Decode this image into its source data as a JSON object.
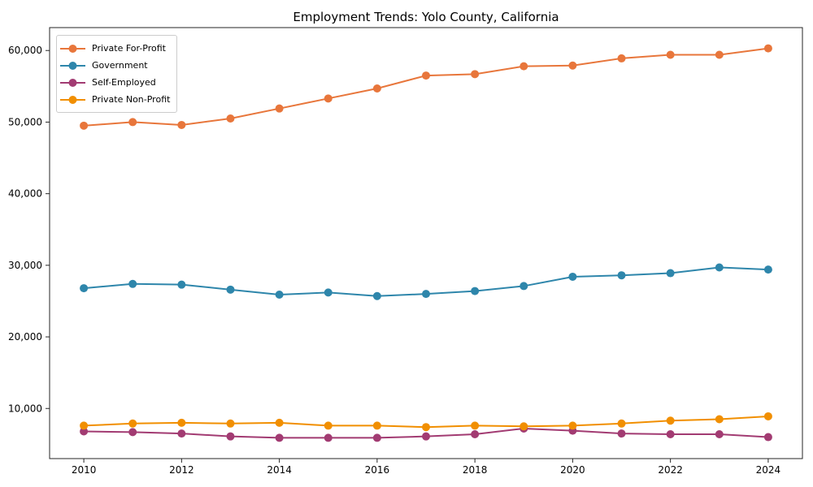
{
  "chart_data": {
    "type": "line",
    "title": "Employment Trends: Yolo County, California",
    "xlabel": "",
    "ylabel": "",
    "grid": false,
    "legend_position": "upper-left",
    "x": [
      2010,
      2011,
      2012,
      2013,
      2014,
      2015,
      2016,
      2017,
      2018,
      2019,
      2020,
      2021,
      2022,
      2023,
      2024
    ],
    "x_tick_labels": [
      "2010",
      "2012",
      "2014",
      "2016",
      "2018",
      "2020",
      "2022",
      "2024"
    ],
    "y_ticks": [
      10000,
      20000,
      30000,
      40000,
      50000,
      60000
    ],
    "y_tick_labels": [
      "10,000",
      "20,000",
      "30,000",
      "40,000",
      "50,000",
      "60,000"
    ],
    "xlim": [
      2009.3,
      2024.7
    ],
    "ylim": [
      3000,
      63200
    ],
    "series": [
      {
        "name": "Private For-Profit",
        "color": "#E8763B",
        "marker": "circle",
        "values": [
          49500,
          50000,
          49600,
          50500,
          51900,
          53300,
          54700,
          56500,
          56700,
          57800,
          57900,
          58900,
          59400,
          59400,
          60300
        ]
      },
      {
        "name": "Government",
        "color": "#2E86AB",
        "marker": "circle",
        "values": [
          26800,
          27400,
          27300,
          26600,
          25900,
          26200,
          25700,
          26000,
          26400,
          27100,
          28400,
          28600,
          28900,
          29700,
          29400
        ]
      },
      {
        "name": "Self-Employed",
        "color": "#A23B72",
        "marker": "circle",
        "values": [
          6800,
          6700,
          6500,
          6100,
          5900,
          5900,
          5900,
          6100,
          6400,
          7200,
          6900,
          6500,
          6400,
          6400,
          6000
        ]
      },
      {
        "name": "Private Non-Profit",
        "color": "#F18F01",
        "marker": "circle",
        "values": [
          7600,
          7900,
          8000,
          7900,
          8000,
          7600,
          7600,
          7400,
          7600,
          7500,
          7600,
          7900,
          8300,
          8500,
          8900
        ]
      }
    ]
  }
}
